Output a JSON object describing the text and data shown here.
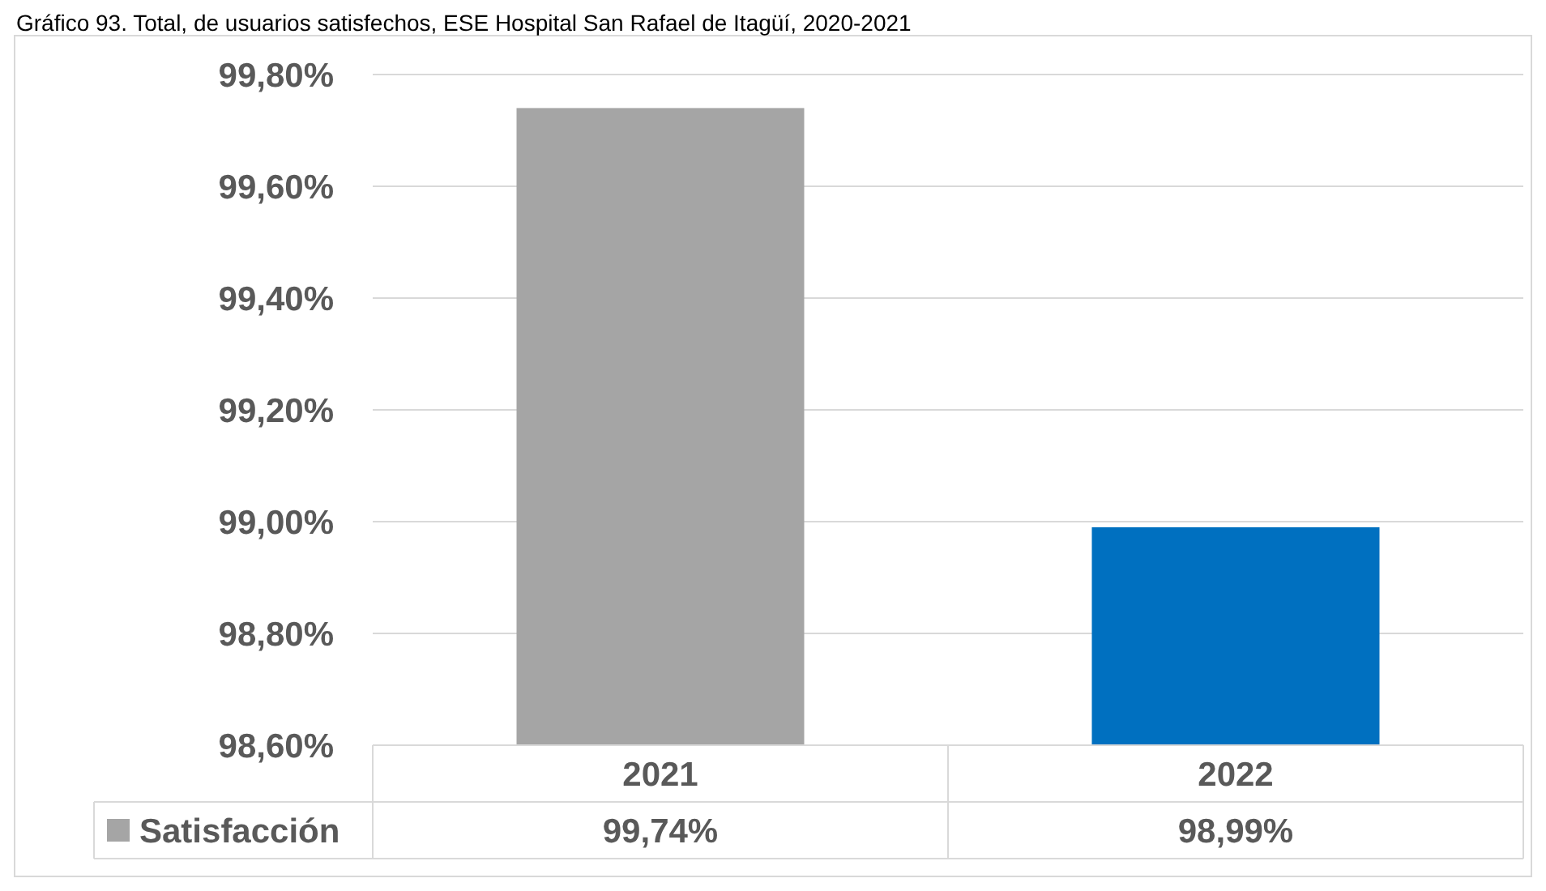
{
  "chart_data": {
    "type": "bar",
    "title": "Gráfico 93. Total, de usuarios satisfechos, ESE Hospital San Rafael de Itagüí, 2020-2021",
    "categories": [
      "2021",
      "2022"
    ],
    "series": [
      {
        "name": "Satisfacción",
        "color": "#a5a5a5",
        "colors": [
          "#a5a5a5",
          "#0070c0"
        ],
        "values": [
          99.74,
          98.99
        ],
        "value_labels": [
          "99,74%",
          "98,99%"
        ]
      }
    ],
    "ylim": [
      98.6,
      99.8
    ],
    "yticks": [
      {
        "value": 98.6,
        "label": "98,60%"
      },
      {
        "value": 98.8,
        "label": "98,80%"
      },
      {
        "value": 99.0,
        "label": "99,00%"
      },
      {
        "value": 99.2,
        "label": "99,20%"
      },
      {
        "value": 99.4,
        "label": "99,40%"
      },
      {
        "value": 99.6,
        "label": "99,60%"
      },
      {
        "value": 99.8,
        "label": "99,80%"
      }
    ],
    "grid": "y",
    "data_labels": true,
    "legend": "bottom"
  }
}
